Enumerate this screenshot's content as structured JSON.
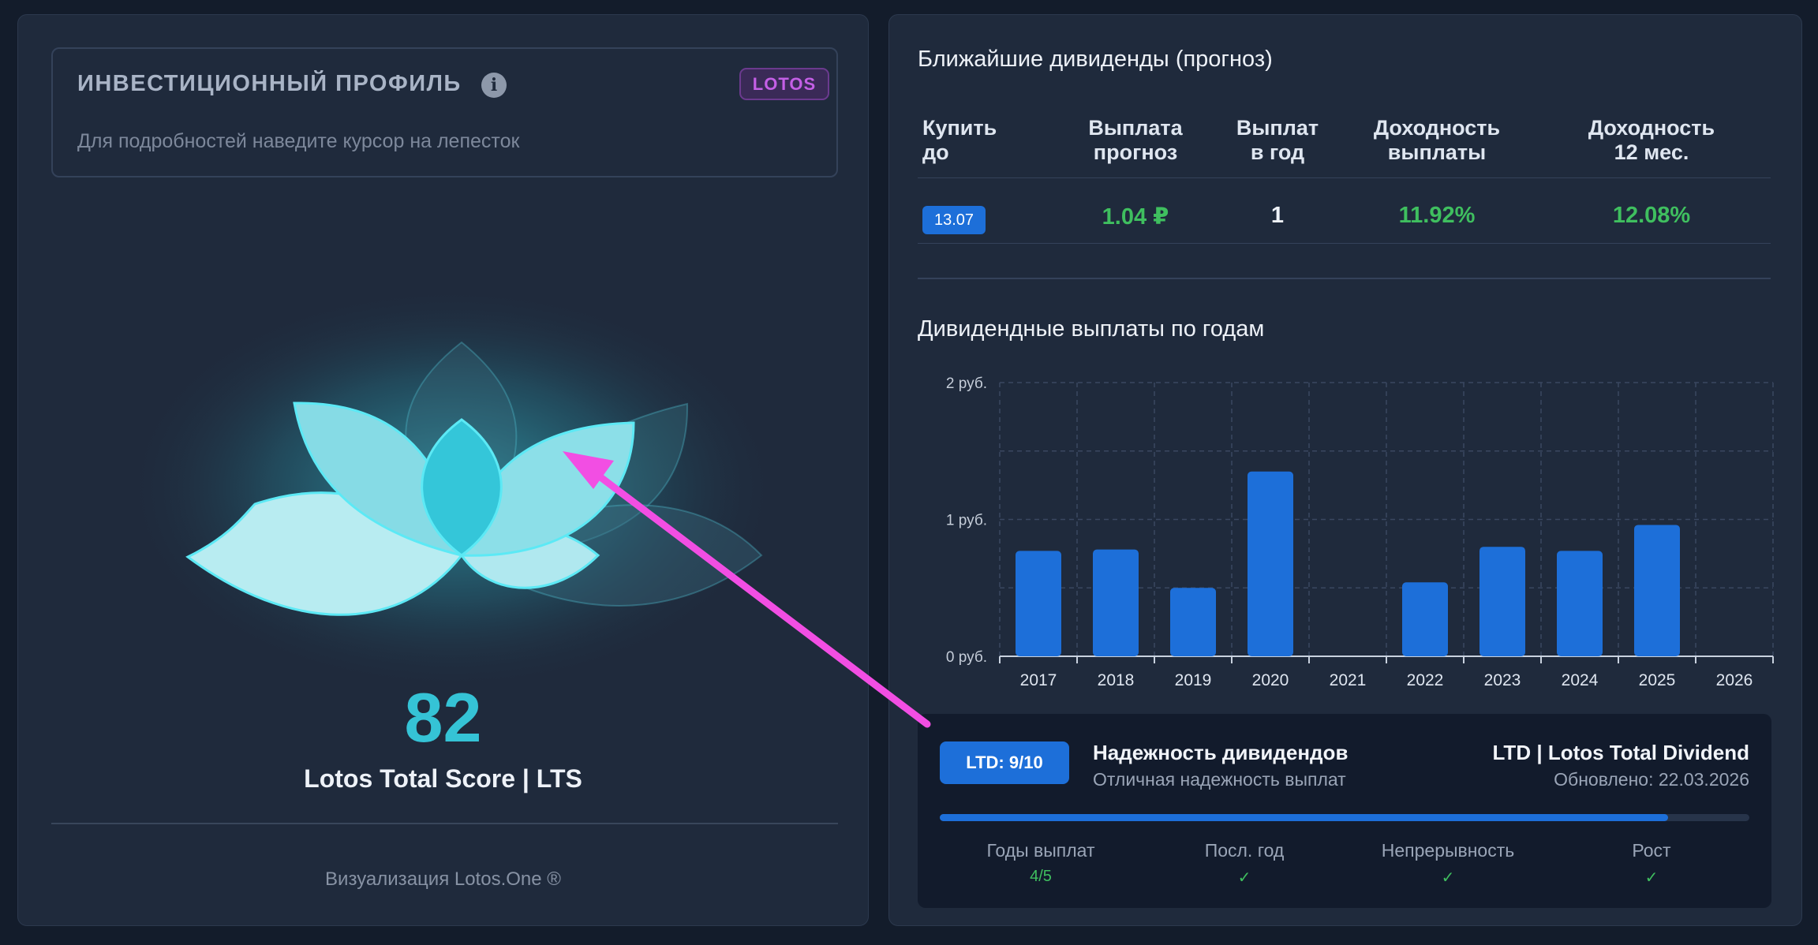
{
  "profile": {
    "title": "ИНВЕСТИЦИОННЫЙ ПРОФИЛЬ",
    "info_icon": "i",
    "badge": "LOTOS",
    "hint": "Для подробностей наведите курсор на лепесток",
    "score": "82",
    "score_label": "Lotos Total Score | LTS",
    "footer": "Визуализация Lotos.One ®"
  },
  "nearest": {
    "title": "Ближайшие дивиденды (прогноз)",
    "headers": {
      "buy_by": [
        "Купить",
        "до"
      ],
      "payout": [
        "Выплата",
        "прогноз"
      ],
      "per_year": [
        "Выплат",
        "в год"
      ],
      "yield": [
        "Доходность",
        "выплаты"
      ],
      "yield12": [
        "Доходность",
        "12 мес."
      ]
    },
    "row": {
      "date": "13.07",
      "payout": "1.04 ₽",
      "per_year": "1",
      "yield": "11.92%",
      "yield12": "12.08%"
    }
  },
  "chart_title": "Дивидендные выплаты по годам",
  "chart_data": {
    "type": "bar",
    "categories": [
      "2017",
      "2018",
      "2019",
      "2020",
      "2021",
      "2022",
      "2023",
      "2024",
      "2025",
      "2026"
    ],
    "values": [
      0.77,
      0.78,
      0.5,
      1.35,
      0,
      0.54,
      0.8,
      0.77,
      0.96,
      0
    ],
    "ylim": [
      0,
      2
    ],
    "y_ticks": [
      {
        "v": 0,
        "label": "0 руб."
      },
      {
        "v": 1,
        "label": "1 руб."
      },
      {
        "v": 2,
        "label": "2 руб."
      }
    ],
    "grid": true,
    "bar_color": "#1d6fd9"
  },
  "ltd": {
    "badge": "LTD: 9/10",
    "name": "Надежность дивидендов",
    "sub": "Отличная надежность выплат",
    "brand": "LTD | Lotos Total Dividend",
    "updated": "Обновлено: 22.03.2026",
    "score_fraction": 0.9,
    "metrics": [
      {
        "label": "Годы выплат",
        "value": "4/5"
      },
      {
        "label": "Посл. год",
        "value": "✓"
      },
      {
        "label": "Непрерывность",
        "value": "✓"
      },
      {
        "label": "Рост",
        "value": "✓"
      }
    ]
  },
  "colors": {
    "accent": "#35c3d6",
    "positive": "#3fbf5f",
    "brand_blue": "#1d6fd9",
    "annotation_arrow": "#f24ee3"
  }
}
